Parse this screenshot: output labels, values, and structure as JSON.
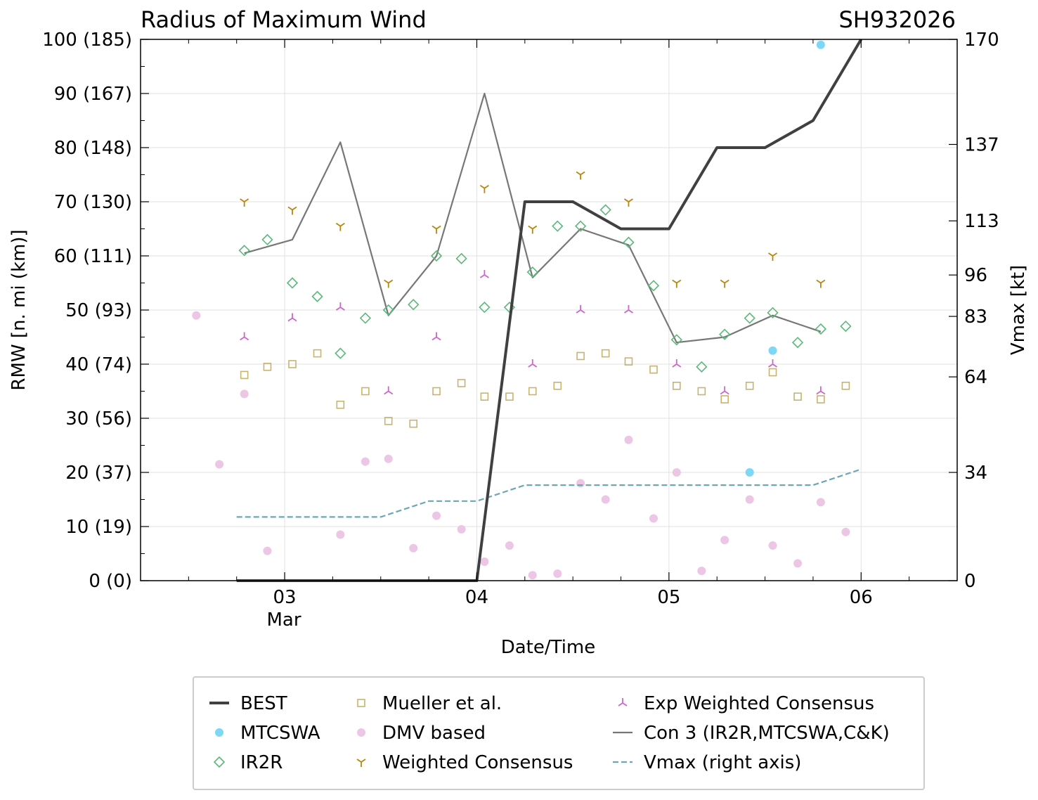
{
  "chart_data": {
    "type": "scatter",
    "title": "Radius of Maximum Wind",
    "storm_id": "SH932026",
    "xlabel": "Date/Time",
    "ylabel": "RMW [n. mi (km)]",
    "y2label": "Vmax [kt]",
    "xlim": [
      2.25,
      6.5
    ],
    "ylim": [
      0,
      100
    ],
    "y2lim": [
      0,
      170
    ],
    "grid": true,
    "x_ticks": [
      {
        "value": 3,
        "label": "03"
      },
      {
        "value": 4,
        "label": "04"
      },
      {
        "value": 5,
        "label": "05"
      },
      {
        "value": 6,
        "label": "06"
      }
    ],
    "x_month_label": "Mar",
    "y_ticks": [
      {
        "value": 0,
        "label": "0 (0)"
      },
      {
        "value": 10,
        "label": "10 (19)"
      },
      {
        "value": 20,
        "label": "20 (37)"
      },
      {
        "value": 30,
        "label": "30 (56)"
      },
      {
        "value": 40,
        "label": "40 (74)"
      },
      {
        "value": 50,
        "label": "50 (93)"
      },
      {
        "value": 60,
        "label": "60 (111)"
      },
      {
        "value": 70,
        "label": "70 (130)"
      },
      {
        "value": 80,
        "label": "80 (148)"
      },
      {
        "value": 90,
        "label": "90 (167)"
      },
      {
        "value": 100,
        "label": "100 (185)"
      }
    ],
    "y2_ticks": [
      {
        "value": 0,
        "label": "0"
      },
      {
        "value": 34,
        "label": "34"
      },
      {
        "value": 64,
        "label": "64"
      },
      {
        "value": 83,
        "label": "83"
      },
      {
        "value": 96,
        "label": "96"
      },
      {
        "value": 113,
        "label": "113"
      },
      {
        "value": 137,
        "label": "137"
      },
      {
        "value": 170,
        "label": "170"
      }
    ],
    "series": [
      {
        "name": "BEST",
        "kind": "line",
        "color": "#404040",
        "points": [
          [
            2.75,
            0
          ],
          [
            4.0,
            0
          ],
          [
            4.25,
            70
          ],
          [
            4.5,
            70
          ],
          [
            4.75,
            65
          ],
          [
            5.0,
            65
          ],
          [
            5.25,
            80
          ],
          [
            5.5,
            80
          ],
          [
            5.75,
            85
          ],
          [
            6.0,
            100
          ]
        ]
      },
      {
        "name": "MTCSWA",
        "kind": "dot",
        "color": "#7dd8f5",
        "points": [
          [
            5.42,
            20
          ],
          [
            5.54,
            42.5
          ],
          [
            5.79,
            99
          ]
        ]
      },
      {
        "name": "IR2R",
        "kind": "diamond",
        "color": "#5cb87a",
        "points": [
          [
            2.79,
            61
          ],
          [
            2.91,
            63
          ],
          [
            3.04,
            55
          ],
          [
            3.17,
            52.5
          ],
          [
            3.29,
            42
          ],
          [
            3.42,
            48.5
          ],
          [
            3.54,
            50
          ],
          [
            3.67,
            51
          ],
          [
            3.79,
            60
          ],
          [
            3.92,
            59.5
          ],
          [
            4.04,
            50.5
          ],
          [
            4.17,
            50.5
          ],
          [
            4.29,
            57
          ],
          [
            4.42,
            65.5
          ],
          [
            4.54,
            65.5
          ],
          [
            4.67,
            68.5
          ],
          [
            4.79,
            62.5
          ],
          [
            4.92,
            54.5
          ],
          [
            5.04,
            44.5
          ],
          [
            5.17,
            39.5
          ],
          [
            5.29,
            45.5
          ],
          [
            5.42,
            48.5
          ],
          [
            5.54,
            49.5
          ],
          [
            5.67,
            44
          ],
          [
            5.79,
            46.5
          ],
          [
            5.92,
            47
          ]
        ]
      },
      {
        "name": "Mueller et al.",
        "kind": "square",
        "color": "#c8b46e",
        "points": [
          [
            2.79,
            38
          ],
          [
            2.91,
            39.5
          ],
          [
            3.04,
            40
          ],
          [
            3.17,
            42
          ],
          [
            3.29,
            32.5
          ],
          [
            3.42,
            35
          ],
          [
            3.54,
            29.5
          ],
          [
            3.67,
            29
          ],
          [
            3.79,
            35
          ],
          [
            3.92,
            36.5
          ],
          [
            4.04,
            34
          ],
          [
            4.17,
            34
          ],
          [
            4.29,
            35
          ],
          [
            4.42,
            36
          ],
          [
            4.54,
            41.5
          ],
          [
            4.67,
            42
          ],
          [
            4.79,
            40.5
          ],
          [
            4.92,
            39
          ],
          [
            5.04,
            36
          ],
          [
            5.17,
            35
          ],
          [
            5.29,
            33.5
          ],
          [
            5.42,
            36
          ],
          [
            5.54,
            38.5
          ],
          [
            5.67,
            34
          ],
          [
            5.79,
            33.5
          ],
          [
            5.92,
            36
          ]
        ]
      },
      {
        "name": "DMV based",
        "kind": "dot",
        "color": "#ecc6e4",
        "points": [
          [
            2.54,
            49
          ],
          [
            2.66,
            21.5
          ],
          [
            2.79,
            34.5
          ],
          [
            2.91,
            5.5
          ],
          [
            3.29,
            8.5
          ],
          [
            3.42,
            22
          ],
          [
            3.54,
            22.5
          ],
          [
            3.67,
            6
          ],
          [
            3.79,
            12
          ],
          [
            3.92,
            9.5
          ],
          [
            4.04,
            3.5
          ],
          [
            4.17,
            6.5
          ],
          [
            4.29,
            1
          ],
          [
            4.42,
            1.3
          ],
          [
            4.54,
            18
          ],
          [
            4.67,
            15
          ],
          [
            4.79,
            26
          ],
          [
            4.92,
            11.5
          ],
          [
            5.04,
            20
          ],
          [
            5.17,
            1.8
          ],
          [
            5.29,
            7.5
          ],
          [
            5.42,
            15
          ],
          [
            5.54,
            6.5
          ],
          [
            5.67,
            3.2
          ],
          [
            5.79,
            14.5
          ],
          [
            5.92,
            9
          ]
        ]
      },
      {
        "name": "Weighted Consensus",
        "kind": "tri_down",
        "color": "#b8860b",
        "points": [
          [
            2.79,
            70
          ],
          [
            3.04,
            68.5
          ],
          [
            3.29,
            65.5
          ],
          [
            3.54,
            55
          ],
          [
            3.79,
            65
          ],
          [
            4.04,
            72.5
          ],
          [
            4.29,
            65
          ],
          [
            4.54,
            75
          ],
          [
            4.79,
            70
          ],
          [
            5.04,
            55
          ],
          [
            5.29,
            55
          ],
          [
            5.54,
            60
          ],
          [
            5.79,
            55
          ]
        ]
      },
      {
        "name": "Exp Weighted Consensus",
        "kind": "tri_up",
        "color": "#cc66cc",
        "points": [
          [
            2.79,
            45
          ],
          [
            3.04,
            48.5
          ],
          [
            3.29,
            50.5
          ],
          [
            3.54,
            35
          ],
          [
            3.79,
            45
          ],
          [
            4.04,
            56.5
          ],
          [
            4.29,
            40
          ],
          [
            4.54,
            50
          ],
          [
            4.79,
            50
          ],
          [
            5.04,
            40
          ],
          [
            5.29,
            35
          ],
          [
            5.54,
            40
          ],
          [
            5.79,
            35
          ]
        ]
      },
      {
        "name": "Con 3 (IR2R,MTCSWA,C&K)",
        "kind": "line",
        "color": "#777777",
        "points": [
          [
            2.79,
            60.5
          ],
          [
            3.04,
            63
          ],
          [
            3.29,
            81
          ],
          [
            3.54,
            49
          ],
          [
            3.79,
            60
          ],
          [
            4.04,
            90
          ],
          [
            4.29,
            56
          ],
          [
            4.54,
            65
          ],
          [
            4.79,
            62
          ],
          [
            5.04,
            44
          ],
          [
            5.29,
            45
          ],
          [
            5.54,
            49
          ],
          [
            5.79,
            46
          ]
        ]
      },
      {
        "name": "Vmax (right axis)",
        "kind": "dashed",
        "color": "#6aa8b8",
        "axis": "right",
        "points": [
          [
            2.75,
            20
          ],
          [
            3.5,
            20
          ],
          [
            3.75,
            25
          ],
          [
            4.0,
            25
          ],
          [
            4.25,
            30
          ],
          [
            5.75,
            30
          ],
          [
            6.0,
            35
          ]
        ]
      }
    ]
  }
}
